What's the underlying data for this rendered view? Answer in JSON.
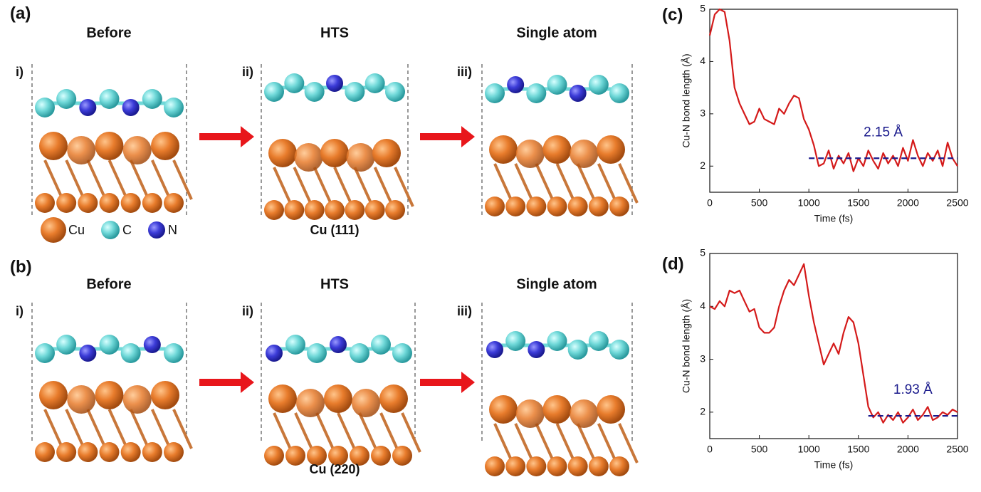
{
  "figure": {
    "panel_labels": [
      "(a)",
      "(b)",
      "(c)",
      "(d)"
    ],
    "columns": [
      "Before",
      "HTS",
      "Single atom"
    ],
    "steps": [
      "i)",
      "ii)",
      "iii)"
    ],
    "legend": [
      "Cu",
      "C",
      "N"
    ],
    "surfaces": [
      "Cu (111)",
      "Cu (220)"
    ]
  },
  "chart_data": [
    {
      "type": "line",
      "xlabel": "Time (fs)",
      "ylabel": "Cu-N bond length (Å)",
      "x": [
        0,
        50,
        100,
        150,
        200,
        250,
        300,
        350,
        400,
        450,
        500,
        550,
        600,
        650,
        700,
        750,
        800,
        850,
        900,
        950,
        1000,
        1050,
        1100,
        1150,
        1200,
        1250,
        1300,
        1350,
        1400,
        1450,
        1500,
        1550,
        1600,
        1650,
        1700,
        1750,
        1800,
        1850,
        1900,
        1950,
        2000,
        2050,
        2100,
        2150,
        2200,
        2250,
        2300,
        2350,
        2400,
        2450,
        2500
      ],
      "series": [
        {
          "color": "#d41a1a",
          "values": [
            4.5,
            4.9,
            5.0,
            4.95,
            4.4,
            3.5,
            3.2,
            3.0,
            2.8,
            2.85,
            3.1,
            2.9,
            2.85,
            2.8,
            3.1,
            3.0,
            3.2,
            3.35,
            3.3,
            2.9,
            2.7,
            2.4,
            2.0,
            2.05,
            2.3,
            1.95,
            2.2,
            2.05,
            2.25,
            1.9,
            2.15,
            2.0,
            2.3,
            2.1,
            1.95,
            2.25,
            2.05,
            2.2,
            2.0,
            2.35,
            2.1,
            2.5,
            2.2,
            2.0,
            2.25,
            2.1,
            2.3,
            2.0,
            2.45,
            2.15,
            2.0
          ]
        }
      ],
      "xlim": [
        0,
        2500
      ],
      "ylim": [
        1.5,
        5
      ],
      "xticks": [
        0,
        500,
        1000,
        1500,
        2000,
        2500
      ],
      "yticks": [
        2,
        3,
        4,
        5
      ],
      "reference_line": {
        "value": 2.15,
        "label": "2.15 Å",
        "from": 1000,
        "to": 2500,
        "color": "#1a1a8c"
      }
    },
    {
      "type": "line",
      "xlabel": "Time (fs)",
      "ylabel": "Cu-N bond length (Å)",
      "x": [
        0,
        50,
        100,
        150,
        200,
        250,
        300,
        350,
        400,
        450,
        500,
        550,
        600,
        650,
        700,
        750,
        800,
        850,
        900,
        950,
        1000,
        1050,
        1100,
        1150,
        1200,
        1250,
        1300,
        1350,
        1400,
        1450,
        1500,
        1550,
        1600,
        1650,
        1700,
        1750,
        1800,
        1850,
        1900,
        1950,
        2000,
        2050,
        2100,
        2150,
        2200,
        2250,
        2300,
        2350,
        2400,
        2450,
        2500
      ],
      "series": [
        {
          "color": "#d41a1a",
          "values": [
            4.0,
            3.95,
            4.1,
            4.0,
            4.3,
            4.25,
            4.3,
            4.1,
            3.9,
            3.95,
            3.6,
            3.5,
            3.5,
            3.6,
            4.0,
            4.3,
            4.5,
            4.4,
            4.6,
            4.8,
            4.2,
            3.7,
            3.3,
            2.9,
            3.1,
            3.3,
            3.1,
            3.5,
            3.8,
            3.7,
            3.3,
            2.7,
            2.1,
            1.9,
            2.0,
            1.8,
            1.95,
            1.85,
            2.0,
            1.8,
            1.9,
            2.05,
            1.85,
            1.95,
            2.1,
            1.85,
            1.9,
            2.0,
            1.95,
            2.05,
            2.0
          ]
        }
      ],
      "xlim": [
        0,
        2500
      ],
      "ylim": [
        1.5,
        5
      ],
      "xticks": [
        0,
        500,
        1000,
        1500,
        2000,
        2500
      ],
      "yticks": [
        2,
        3,
        4,
        5
      ],
      "reference_line": {
        "value": 1.93,
        "label": "1.93 Å",
        "from": 1600,
        "to": 2500,
        "color": "#1a1a8c"
      }
    }
  ]
}
